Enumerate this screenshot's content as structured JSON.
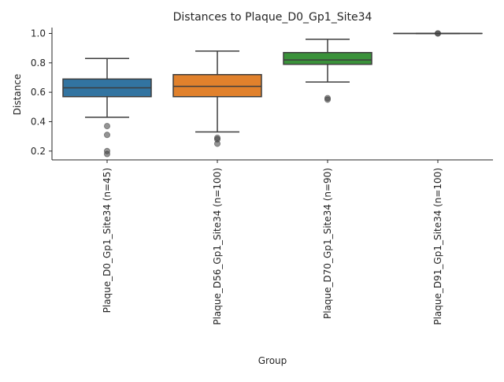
{
  "chart_data": {
    "type": "box",
    "title": "Distances to Plaque_D0_Gp1_Site34",
    "xlabel": "Group",
    "ylabel": "Distance",
    "ylim": [
      0.14,
      1.04
    ],
    "yticks": [
      0.2,
      0.4,
      0.6,
      0.8,
      1.0
    ],
    "ytick_labels": [
      "0.2",
      "0.4",
      "0.6",
      "0.8",
      "1.0"
    ],
    "grid": false,
    "legend": "none",
    "categories": [
      "Plaque_D0_Gp1_Site34 (n=45)",
      "Plaque_D56_Gp1_Site34 (n=100)",
      "Plaque_D70_Gp1_Site34 (n=90)",
      "Plaque_D91_Gp1_Site34 (n=100)"
    ],
    "boxes": [
      {
        "whisker_low": 0.43,
        "q1": 0.57,
        "median": 0.63,
        "q3": 0.69,
        "whisker_high": 0.83,
        "outliers": [
          0.37,
          0.31,
          0.2,
          0.18
        ],
        "color": "#3274a1"
      },
      {
        "whisker_low": 0.33,
        "q1": 0.57,
        "median": 0.64,
        "q3": 0.72,
        "whisker_high": 0.88,
        "outliers": [
          0.29,
          0.28,
          0.25
        ],
        "color": "#e1812c"
      },
      {
        "whisker_low": 0.67,
        "q1": 0.79,
        "median": 0.82,
        "q3": 0.87,
        "whisker_high": 0.96,
        "outliers": [
          0.56,
          0.55
        ],
        "color": "#3a923a"
      },
      {
        "whisker_low": 1.0,
        "q1": 1.0,
        "median": 1.0,
        "q3": 1.0,
        "whisker_high": 1.0,
        "outliers": [
          1.0,
          1.0
        ],
        "color": "#c03d3e"
      }
    ]
  }
}
